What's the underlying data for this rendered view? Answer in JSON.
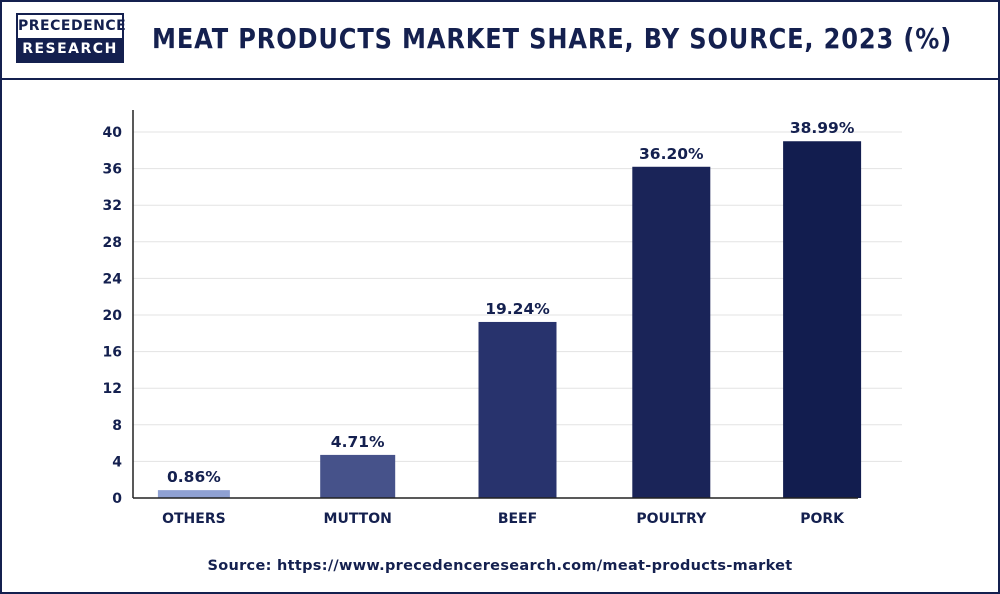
{
  "header": {
    "logo_top": "PRECEDENCE",
    "logo_bottom": "RESEARCH",
    "title": "MEAT PRODUCTS MARKET SHARE, BY SOURCE, 2023 (%)"
  },
  "footer": {
    "source": "Source: https://www.precedenceresearch.com/meat-products-market"
  },
  "chart_data": {
    "type": "bar",
    "title": "MEAT PRODUCTS MARKET SHARE, BY SOURCE, 2023 (%)",
    "xlabel": "",
    "ylabel": "",
    "categories": [
      "OTHERS",
      "MUTTON",
      "BEEF",
      "POULTRY",
      "PORK"
    ],
    "values": [
      0.86,
      4.71,
      19.24,
      36.2,
      38.99
    ],
    "value_labels": [
      "0.86%",
      "4.71%",
      "19.24%",
      "36.20%",
      "38.99%"
    ],
    "bar_colors": [
      "#8fa1d3",
      "#46528a",
      "#28336d",
      "#1a2458",
      "#121d4f"
    ],
    "ylim": [
      0,
      40
    ],
    "yticks": [
      0,
      4,
      8,
      12,
      16,
      20,
      24,
      28,
      32,
      36,
      40
    ],
    "grid": true,
    "legend": "none",
    "colors": {
      "text": "#14204f",
      "grid": "#e3e3e3",
      "axis": "#222222"
    }
  }
}
